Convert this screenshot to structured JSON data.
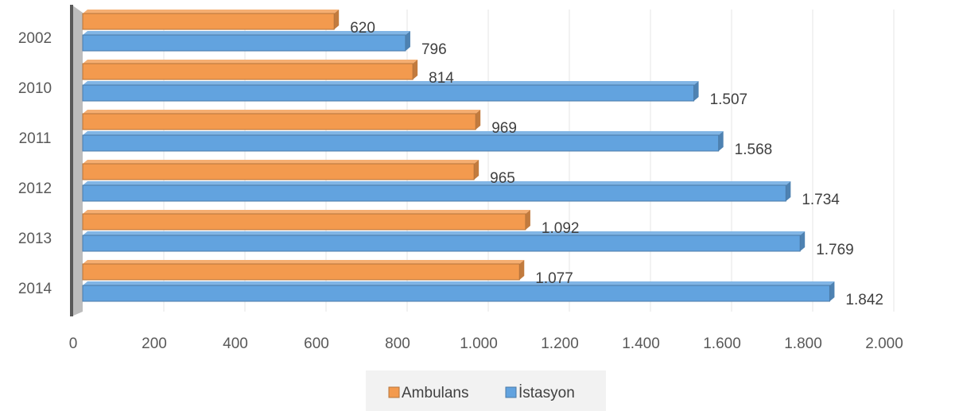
{
  "chart_data": {
    "type": "bar",
    "orientation": "horizontal",
    "categories": [
      "2002",
      "2010",
      "2011",
      "2012",
      "2013",
      "2014"
    ],
    "series": [
      {
        "name": "Ambulans",
        "values": [
          620,
          814,
          969,
          965,
          1092,
          1077
        ],
        "labels": [
          "620",
          "814",
          "969",
          "965",
          "1.092",
          "1.077"
        ],
        "color": "#F39A4E"
      },
      {
        "name": "İstasyon",
        "values": [
          796,
          1507,
          1568,
          1734,
          1769,
          1842
        ],
        "labels": [
          "796",
          "1.507",
          "1.568",
          "1.734",
          "1.769",
          "1.842"
        ],
        "color": "#62A3DF"
      }
    ],
    "x_axis": {
      "range": [
        0,
        2000
      ],
      "ticks": [
        0,
        200,
        400,
        600,
        800,
        1000,
        1200,
        1400,
        1600,
        1800,
        2000
      ],
      "tick_labels": [
        "0",
        "200",
        "400",
        "600",
        "800",
        "1.000",
        "1.200",
        "1.400",
        "1.600",
        "1.800",
        "2.000"
      ]
    },
    "grid": true,
    "legend_position": "bottom",
    "style": "3d"
  }
}
